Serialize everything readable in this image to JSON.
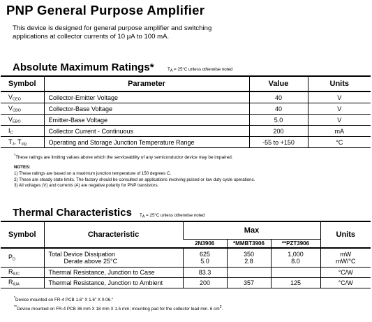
{
  "title": "PNP General Purpose Amplifier",
  "description": {
    "line1": "This device is designed for general purpose amplifier and switching",
    "line2": "applications at collector currents of 10 μA to 100 mA."
  },
  "abs_max": {
    "title": "Absolute Maximum Ratings*",
    "note": "T",
    "note_sub": "A",
    "note_rest": " = 25°C unless otherwise noted",
    "headers": {
      "symbol": "Symbol",
      "parameter": "Parameter",
      "value": "Value",
      "units": "Units"
    },
    "rows": [
      {
        "sym": "V",
        "sym_sub": "CEO",
        "param": "Collector-Emitter Voltage",
        "value": "40",
        "units": "V"
      },
      {
        "sym": "V",
        "sym_sub": "CBO",
        "param": "Collector-Base Voltage",
        "value": "40",
        "units": "V"
      },
      {
        "sym": "V",
        "sym_sub": "EBO",
        "param": "Emitter-Base Voltage",
        "value": "5.0",
        "units": "V"
      },
      {
        "sym": "I",
        "sym_sub": "C",
        "param": "Collector Current - Continuous",
        "value": "200",
        "units": "mA"
      },
      {
        "sym": "T",
        "sym_sub": "J",
        "sym2": ", T",
        "sym2_sub": "stg",
        "param": "Operating and Storage Junction Temperature Range",
        "value": "-55 to +150",
        "units": "°C"
      }
    ],
    "footnote": "These ratings are limiting values above which the serviceability of any semiconductor device may be impaired."
  },
  "notes": {
    "heading": "NOTES:",
    "items": [
      "1) These ratings are based on a maximum junction temperature of 150 degrees C.",
      "2) These are steady state limits. The factory should be consulted on applications involving pulsed or low duty cycle operations.",
      "3) All voltages (V) and currents (A) are negative polarity for PNP transistors."
    ]
  },
  "thermal": {
    "title": "Thermal Characteristics",
    "note": "T",
    "note_sub": "A",
    "note_rest": " = 25°C unless otherwise noted",
    "headers": {
      "symbol": "Symbol",
      "characteristic": "Characteristic",
      "max": "Max",
      "units": "Units"
    },
    "sub_headers": [
      "2N3906",
      "*MMBT3906",
      "**PZT3906"
    ],
    "rows": [
      {
        "sym": "P",
        "sym_sub": "D",
        "char1": "Total Device Dissipation",
        "char2": "Derate above 25°C",
        "v1a": "625",
        "v1b": "5.0",
        "v2a": "350",
        "v2b": "2.8",
        "v3a": "1,000",
        "v3b": "8.0",
        "ua": "mW",
        "ub": "mW/°C"
      },
      {
        "sym": "R",
        "sym_sub": "θJC",
        "char1": "Thermal Resistance, Junction to Case",
        "v1a": "83.3",
        "v2a": "",
        "v3a": "",
        "ua": "°C/W"
      },
      {
        "sym": "R",
        "sym_sub": "θJA",
        "char1": "Thermal Resistance, Junction to Ambient",
        "v1a": "200",
        "v2a": "357",
        "v3a": "125",
        "ua": "°C/W"
      }
    ],
    "foot1": "Device mounted on FR-4 PCB 1.6\" X 1.6\" X 0.06.\"",
    "foot2": "Device mounted on FR-4 PCB 36 mm X 18 mm X 1.5 mm; mounting pad for the collector lead min. 6 cm",
    "foot2_sup": "2",
    "foot2_end": "."
  }
}
